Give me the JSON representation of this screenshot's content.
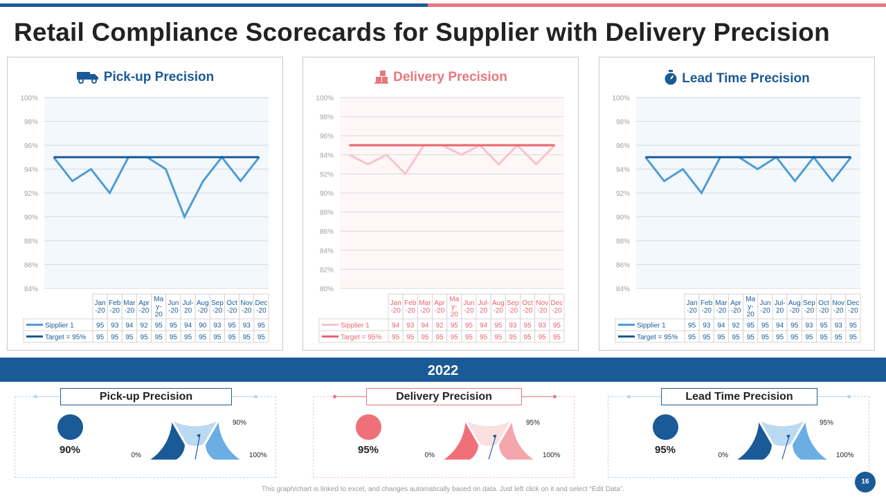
{
  "title": "Retail Compliance Scorecards for Supplier with Delivery Precision",
  "colors": {
    "navy": "#1a5a96",
    "pink": "#e8777f",
    "lightblue": "#5aa3d6",
    "lightpink": "#f2c1c5"
  },
  "months": [
    "Jan\n-20",
    "Feb\n-20",
    "Mar\n-20",
    "Apr\n-20",
    "Ma\ny-\n20",
    "Jun\n-20",
    "Jul-\n20",
    "Aug\n-20",
    "Sep\n-20",
    "Oct\n-20",
    "Nov\n-20",
    "Dec\n-20"
  ],
  "chart_data": [
    {
      "type": "line",
      "title": "Pick-up Precision",
      "icon": "truck-icon",
      "y_ticks": [
        "84%",
        "86%",
        "88%",
        "90%",
        "92%",
        "94%",
        "96%",
        "98%",
        "100%"
      ],
      "ylim": [
        84,
        100
      ],
      "series": [
        {
          "name": "Sipplier 1",
          "values": [
            95,
            93,
            94,
            92,
            95,
            95,
            94,
            90,
            93,
            95,
            93,
            95
          ]
        },
        {
          "name": "Target = 95%",
          "values": [
            95,
            95,
            95,
            95,
            95,
            95,
            95,
            95,
            95,
            95,
            95,
            95
          ]
        }
      ]
    },
    {
      "type": "line",
      "title": "Delivery Precision",
      "icon": "boxes-icon",
      "y_ticks": [
        "80%",
        "82%",
        "84%",
        "86%",
        "88%",
        "90%",
        "92%",
        "94%",
        "96%",
        "98%",
        "100%"
      ],
      "ylim": [
        80,
        100
      ],
      "series": [
        {
          "name": "Sipplier 1",
          "values": [
            94,
            93,
            94,
            92,
            95,
            95,
            94,
            95,
            93,
            95,
            93,
            95
          ]
        },
        {
          "name": "Target = 95%",
          "values": [
            95,
            95,
            95,
            95,
            95,
            95,
            95,
            95,
            95,
            95,
            95,
            95
          ]
        }
      ]
    },
    {
      "type": "line",
      "title": "Lead Time Precision",
      "icon": "stopwatch-icon",
      "y_ticks": [
        "84%",
        "86%",
        "88%",
        "90%",
        "92%",
        "94%",
        "96%",
        "98%",
        "100%"
      ],
      "ylim": [
        84,
        100
      ],
      "series": [
        {
          "name": "Sipplier 1",
          "values": [
            95,
            93,
            94,
            92,
            95,
            95,
            94,
            95,
            93,
            95,
            93,
            95
          ]
        },
        {
          "name": "Target = 95%",
          "values": [
            95,
            95,
            95,
            95,
            95,
            95,
            95,
            95,
            95,
            95,
            95,
            95
          ]
        }
      ]
    }
  ],
  "year_label": "2022",
  "gauges": [
    {
      "title": "Pick-up Precision",
      "value": 90,
      "value_label": "90%",
      "min_label": "0%",
      "max_label": "100%",
      "tick_label": "90%"
    },
    {
      "title": "Delivery Precision",
      "value": 95,
      "value_label": "95%",
      "min_label": "0%",
      "max_label": "100%",
      "tick_label": "95%"
    },
    {
      "title": "Lead Time Precision",
      "value": 95,
      "value_label": "95%",
      "min_label": "0%",
      "max_label": "100%",
      "tick_label": "95%"
    }
  ],
  "footer": "This graph/chart is linked to excel, and changes automatically based on data. Just left click on it and select “Edit Data”.",
  "page_number": "16"
}
